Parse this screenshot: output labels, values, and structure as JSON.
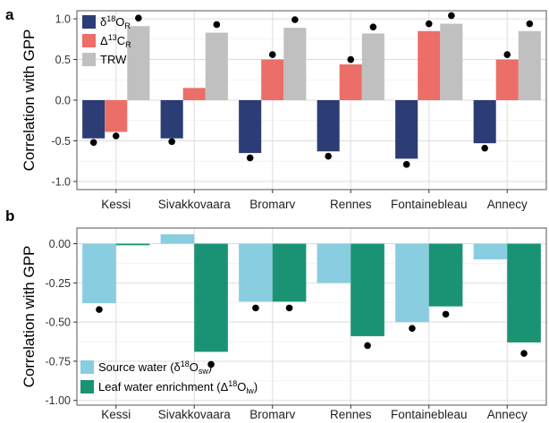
{
  "colors": {
    "d18O": "#2b3d74",
    "d13C": "#ec6e68",
    "trw": "#c0c0c0",
    "source": "#89cde0",
    "leaf": "#1a9374",
    "grid": "#dddddd",
    "border": "#555555",
    "point": "#000000"
  },
  "chart_data": [
    {
      "type": "bar",
      "panel": "a",
      "ylabel": "Correlation with GPP",
      "ylim": [
        -1.1,
        1.1
      ],
      "yticks": [
        "-1.0",
        "-0.5",
        "0.0",
        "0.5",
        "1.0"
      ],
      "ytick_values": [
        -1.0,
        -0.5,
        0.0,
        0.5,
        1.0
      ],
      "categories": [
        "Kessi",
        "Sivakkovaara",
        "Bromarv",
        "Rennes",
        "Fontainebleau",
        "Annecy"
      ],
      "legend_position": "top-left",
      "grid": true,
      "series": [
        {
          "name": "δ18OR",
          "label_main": "δ",
          "label_sup": "18",
          "label_rest": "O",
          "label_sub": "R",
          "color_key": "d18O",
          "values": [
            -0.47,
            -0.47,
            -0.65,
            -0.63,
            -0.72,
            -0.53
          ],
          "points": [
            -0.52,
            -0.51,
            -0.71,
            -0.69,
            -0.79,
            -0.59
          ]
        },
        {
          "name": "Δ13CR",
          "label_main": "Δ",
          "label_sup": "13",
          "label_rest": "C",
          "label_sub": "R",
          "color_key": "d13C",
          "values": [
            -0.39,
            0.15,
            0.5,
            0.44,
            0.85,
            0.5
          ],
          "points": [
            -0.44,
            null,
            0.56,
            0.5,
            0.94,
            0.56
          ]
        },
        {
          "name": "TRW",
          "label_main": "TRW",
          "label_sup": "",
          "label_rest": "",
          "label_sub": "",
          "color_key": "trw",
          "values": [
            0.91,
            0.83,
            0.89,
            0.82,
            0.94,
            0.85
          ],
          "points": [
            1.01,
            0.93,
            0.99,
            0.9,
            1.04,
            0.94
          ]
        }
      ]
    },
    {
      "type": "bar",
      "panel": "b",
      "ylabel": "Correlation with GPP",
      "ylim": [
        -1.03,
        0.1
      ],
      "yticks": [
        "-1.00",
        "-0.75",
        "-0.50",
        "-0.25",
        "0.00"
      ],
      "ytick_values": [
        -1.0,
        -0.75,
        -0.5,
        -0.25,
        0.0
      ],
      "categories": [
        "Kessi",
        "Sivakkovaara",
        "Bromarv",
        "Rennes",
        "Fontainebleau",
        "Annecy"
      ],
      "legend_position": "bottom-left",
      "grid": true,
      "series": [
        {
          "name": "Source water (δ18Osw)",
          "label_main": "Source water (δ",
          "label_sup": "18",
          "label_rest": "O",
          "label_sub": "sw",
          "label_end": ")",
          "color_key": "source",
          "values": [
            -0.38,
            0.06,
            -0.37,
            -0.25,
            -0.5,
            -0.1
          ],
          "points": [
            -0.42,
            null,
            -0.41,
            null,
            -0.54,
            null
          ]
        },
        {
          "name": "Leaf water enrichment (Δ18Olw)",
          "label_main": "Leaf water enrichment (Δ",
          "label_sup": "18",
          "label_rest": "O",
          "label_sub": "lw",
          "label_end": ")",
          "color_key": "leaf",
          "values": [
            -0.01,
            -0.69,
            -0.37,
            -0.59,
            -0.4,
            -0.63
          ],
          "points": [
            null,
            -0.77,
            -0.41,
            -0.65,
            -0.45,
            -0.7
          ]
        }
      ]
    }
  ]
}
